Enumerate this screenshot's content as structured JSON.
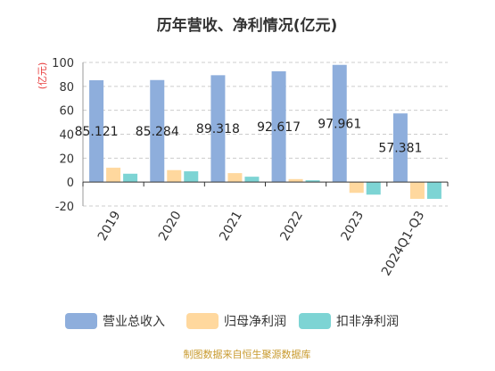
{
  "chart_data": {
    "type": "bar",
    "title": "历年营收、净利情况(亿元)",
    "ylabel": "(亿元)",
    "categories": [
      "2019",
      "2020",
      "2021",
      "2022",
      "2023",
      "2024Q1-Q3"
    ],
    "series": [
      {
        "name": "营业总收入",
        "values": [
          85.121,
          85.284,
          89.318,
          92.617,
          97.961,
          57.381
        ]
      },
      {
        "name": "归母净利润",
        "values": [
          12,
          10,
          7.5,
          2.5,
          -9,
          -14
        ]
      },
      {
        "name": "扣非净利润",
        "values": [
          7,
          9,
          4.5,
          1.5,
          -10.5,
          -14
        ]
      }
    ],
    "data_labels": [
      "85.121",
      "85.284",
      "89.318",
      "92.617",
      "97.961",
      "57.381"
    ],
    "ylim": [
      -20,
      100
    ],
    "yticks": [
      -20,
      0,
      20,
      40,
      60,
      80,
      100
    ],
    "grid": true,
    "legend_position": "bottom",
    "colors": [
      "#8eaedc",
      "#ffd89e",
      "#7dd4d4"
    ],
    "unit_color": "#e83a3a"
  },
  "source": {
    "text": "制图数据来自恒生聚源数据库",
    "color": "#c89a2e"
  }
}
